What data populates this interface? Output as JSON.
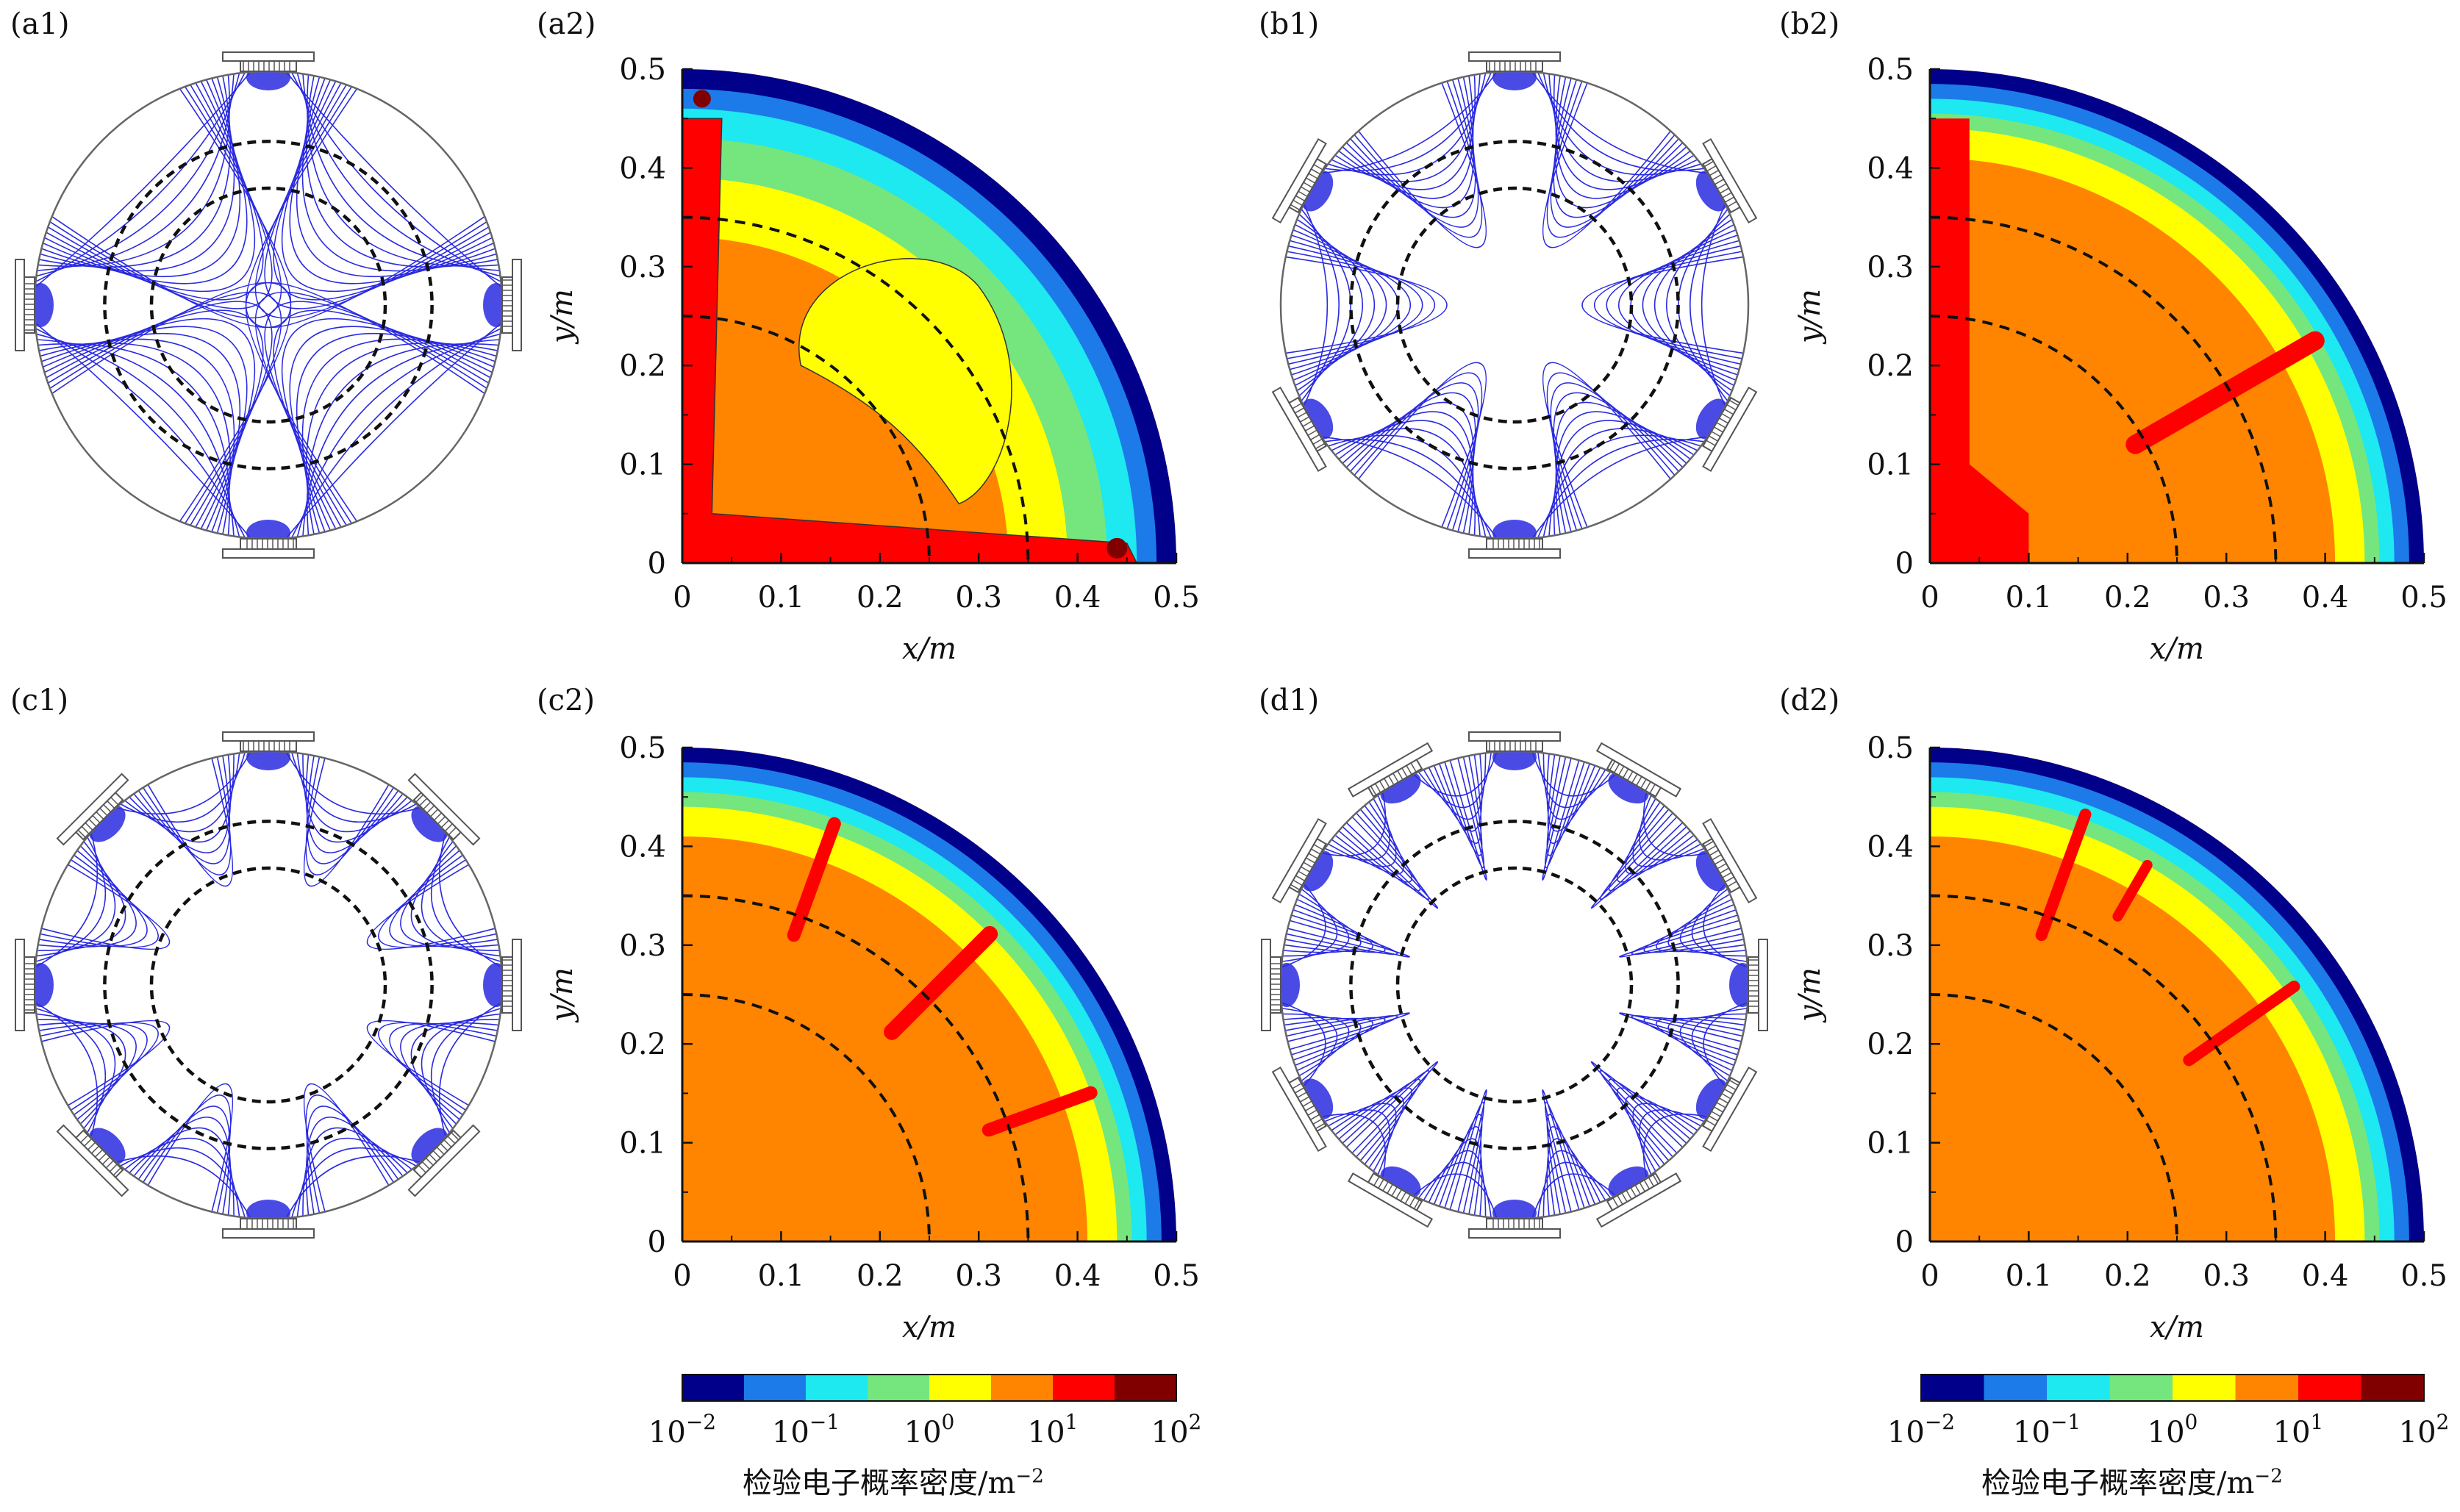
{
  "panel_labels": {
    "a1": "(a1)",
    "a2": "(a2)",
    "b1": "(b1)",
    "b2": "(b2)",
    "c1": "(c1)",
    "c2": "(c2)",
    "d1": "(d1)",
    "d2": "(d2)"
  },
  "field_panels": [
    {
      "id": "a1",
      "magnets": 4,
      "line_color": "#2a2ae0"
    },
    {
      "id": "b1",
      "magnets": 6,
      "line_color": "#2a2ae0"
    },
    {
      "id": "c1",
      "magnets": 8,
      "line_color": "#2a2ae0"
    },
    {
      "id": "d1",
      "magnets": 12,
      "line_color": "#2a2ae0"
    }
  ],
  "chart_data": [
    {
      "type": "heatmap",
      "panel": "a2",
      "xlabel": "x/m",
      "ylabel": "y/m",
      "xlim": [
        0,
        0.5
      ],
      "ylim": [
        0,
        0.5
      ],
      "x_ticks": [
        "0",
        "0.1",
        "0.2",
        "0.3",
        "0.4",
        "0.5"
      ],
      "y_ticks": [
        "0",
        "0.1",
        "0.2",
        "0.3",
        "0.4",
        "0.5"
      ],
      "dashed_circles_r": [
        0.25,
        0.35
      ],
      "magnet_angles_deg": [
        0,
        90
      ],
      "pattern": "a"
    },
    {
      "type": "heatmap",
      "panel": "b2",
      "xlabel": "x/m",
      "ylabel": "y/m",
      "xlim": [
        0,
        0.5
      ],
      "ylim": [
        0,
        0.5
      ],
      "x_ticks": [
        "0",
        "0.1",
        "0.2",
        "0.3",
        "0.4",
        "0.5"
      ],
      "y_ticks": [
        "0",
        "0.1",
        "0.2",
        "0.3",
        "0.4",
        "0.5"
      ],
      "dashed_circles_r": [
        0.25,
        0.35
      ],
      "magnet_angles_deg": [
        30,
        90
      ],
      "pattern": "b"
    },
    {
      "type": "heatmap",
      "panel": "c2",
      "xlabel": "x/m",
      "ylabel": "y/m",
      "xlim": [
        0,
        0.5
      ],
      "ylim": [
        0,
        0.5
      ],
      "x_ticks": [
        "0",
        "0.1",
        "0.2",
        "0.3",
        "0.4",
        "0.5"
      ],
      "y_ticks": [
        "0",
        "0.1",
        "0.2",
        "0.3",
        "0.4",
        "0.5"
      ],
      "dashed_circles_r": [
        0.25,
        0.35
      ],
      "magnet_angles_deg": [
        0,
        45,
        90
      ],
      "pattern": "c"
    },
    {
      "type": "heatmap",
      "panel": "d2",
      "xlabel": "x/m",
      "ylabel": "y/m",
      "xlim": [
        0,
        0.5
      ],
      "ylim": [
        0,
        0.5
      ],
      "x_ticks": [
        "0",
        "0.1",
        "0.2",
        "0.3",
        "0.4",
        "0.5"
      ],
      "y_ticks": [
        "0",
        "0.1",
        "0.2",
        "0.3",
        "0.4",
        "0.5"
      ],
      "dashed_circles_r": [
        0.25,
        0.35
      ],
      "magnet_angles_deg": [
        0,
        30,
        60,
        90
      ],
      "pattern": "d"
    }
  ],
  "colorbar": {
    "caption": "检验电子概率密度/m",
    "caption_exp": "−2",
    "colors": [
      "#00008b",
      "#1c7be8",
      "#1ee8f0",
      "#74e67d",
      "#ffff00",
      "#ff8400",
      "#ff0000",
      "#800000"
    ],
    "tick_labels": [
      {
        "base": "10",
        "exp": "−2"
      },
      {
        "base": "10",
        "exp": "−1"
      },
      {
        "base": "10",
        "exp": "0"
      },
      {
        "base": "10",
        "exp": "1"
      },
      {
        "base": "10",
        "exp": "2"
      }
    ]
  }
}
